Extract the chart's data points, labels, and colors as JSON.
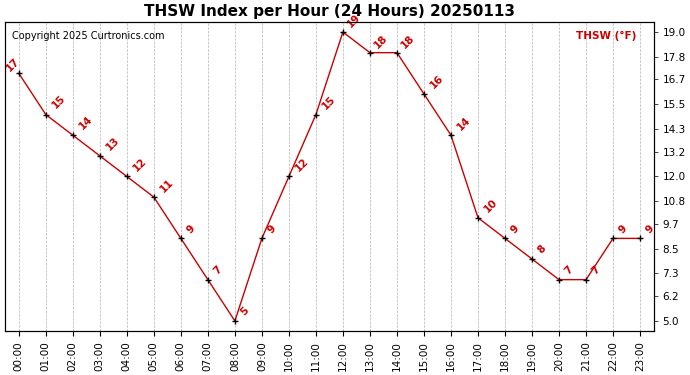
{
  "title": "THSW Index per Hour (24 Hours) 20250113",
  "copyright": "Copyright 2025 Curtronics.com",
  "legend_label": "THSW (°F)",
  "hours": [
    0,
    1,
    2,
    3,
    4,
    5,
    6,
    7,
    8,
    9,
    10,
    11,
    12,
    13,
    14,
    15,
    16,
    17,
    18,
    19,
    20,
    21,
    22,
    23
  ],
  "values": [
    17,
    15,
    14,
    13,
    12,
    11,
    9,
    7,
    5,
    9,
    12,
    15,
    19,
    18,
    18,
    16,
    14,
    10,
    9,
    8,
    7,
    7,
    9,
    9
  ],
  "x_labels": [
    "00:00",
    "01:00",
    "02:00",
    "03:00",
    "04:00",
    "05:00",
    "06:00",
    "07:00",
    "08:00",
    "09:00",
    "10:00",
    "11:00",
    "12:00",
    "13:00",
    "14:00",
    "15:00",
    "16:00",
    "17:00",
    "18:00",
    "19:00",
    "20:00",
    "21:00",
    "22:00",
    "23:00"
  ],
  "y_ticks": [
    5.0,
    6.2,
    7.3,
    8.5,
    9.7,
    10.8,
    12.0,
    13.2,
    14.3,
    15.5,
    16.7,
    17.8,
    19.0
  ],
  "ylim": [
    4.5,
    19.5
  ],
  "line_color": "#cc0000",
  "marker_color": "#000000",
  "label_color": "#cc0000",
  "background_color": "#ffffff",
  "grid_color": "#aaaaaa",
  "title_fontsize": 11,
  "label_fontsize": 7.5,
  "tick_fontsize": 7.5,
  "copyright_fontsize": 7
}
